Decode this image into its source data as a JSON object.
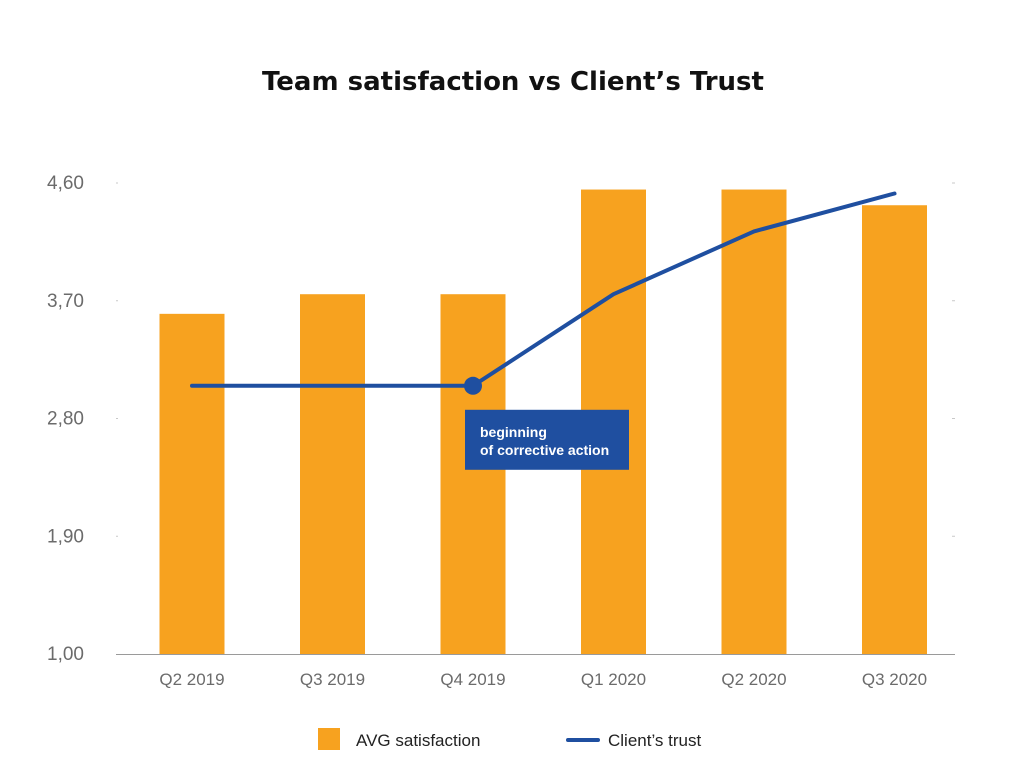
{
  "chart_data": {
    "type": "bar",
    "title": "Team satisfaction vs Client’s Trust",
    "categories": [
      "Q2 2019",
      "Q3 2019",
      "Q4 2019",
      "Q1 2020",
      "Q2 2020",
      "Q3 2020"
    ],
    "ylim": [
      1.0,
      4.6
    ],
    "yticks": [
      "1,00",
      "1,90",
      "2,80",
      "3,70",
      "4,60"
    ],
    "ytick_values": [
      1.0,
      1.9,
      2.8,
      3.7,
      4.6
    ],
    "series": [
      {
        "name": "AVG satisfaction",
        "type": "bar",
        "color": "#F7A21F",
        "values": [
          3.6,
          3.75,
          3.75,
          4.55,
          4.55,
          4.43
        ]
      },
      {
        "name": "Client’s trust",
        "type": "line",
        "color": "#1F4FA0",
        "values": [
          3.05,
          3.05,
          3.05,
          3.75,
          4.23,
          4.52
        ]
      }
    ],
    "annotation": {
      "line1": "beginning",
      "line2": "of corrective action",
      "category": "Q4 2019",
      "box_color": "#1F4FA0"
    },
    "legend_position": "bottom-center",
    "grid": false
  }
}
